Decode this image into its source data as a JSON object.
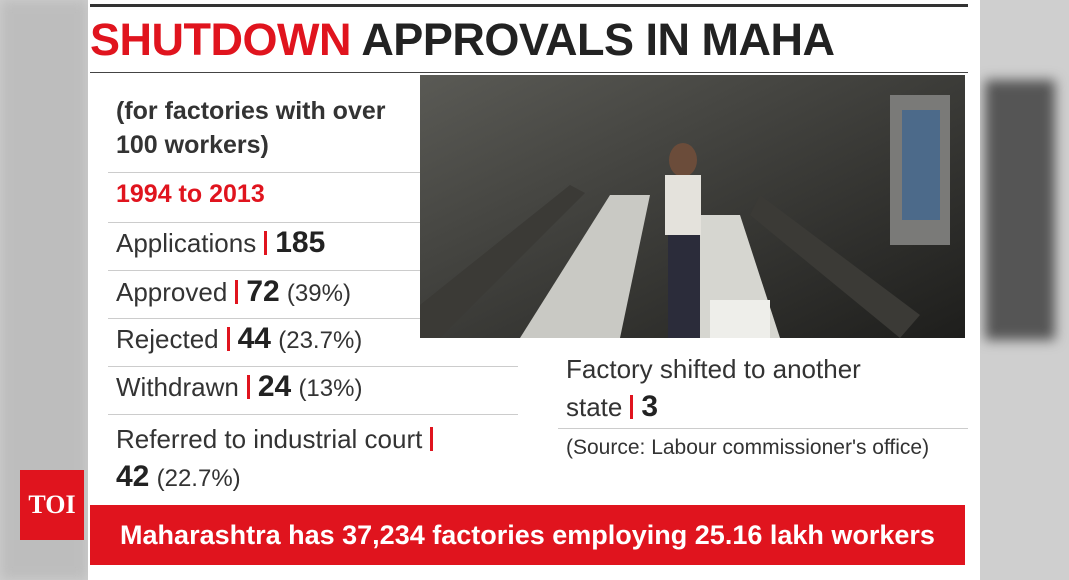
{
  "logo": "TOI",
  "header": {
    "title_highlight": "SHUTDOWN",
    "title_rest": "APPROVALS IN MAHA"
  },
  "subtitle": "(for factories with over 100 workers)",
  "period": "1994 to 2013",
  "stats": [
    {
      "label": "Applications",
      "value": 185
    },
    {
      "label": "Approved",
      "value": 72,
      "share": "(39%)"
    },
    {
      "label": "Rejected",
      "value": 44,
      "share": "(23.7%)"
    },
    {
      "label": "Withdrawn",
      "value": 24,
      "share": "(13%)"
    },
    {
      "label": "Referred to industrial court",
      "value": 42,
      "share": "(22.7%)"
    }
  ],
  "shifted": {
    "label": "Factory shifted to another state",
    "value": 3
  },
  "source": "(Source: Labour commissioner's office)",
  "banner": "Maharashtra has 37,234 factories employing 25.16 lakh workers"
}
